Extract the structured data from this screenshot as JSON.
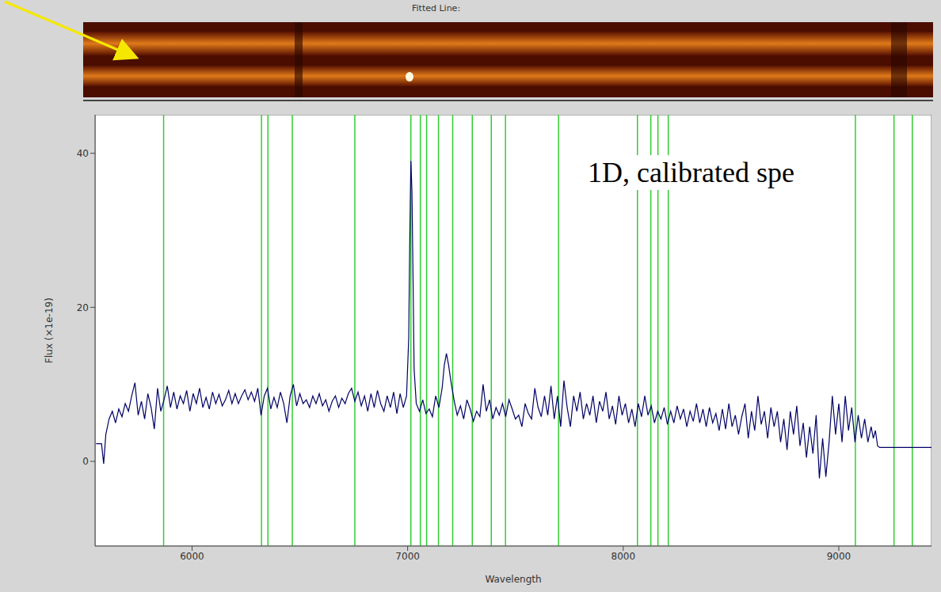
{
  "chart_data": {
    "type": "line",
    "title": "Fitted Line:",
    "annotations": [
      "1D, calibrated spe"
    ],
    "x_label": "Wavelength",
    "y_label": "Flux (×1e-19)",
    "color": "#000066",
    "xlim": [
      5550,
      9430
    ],
    "ylim": [
      -11,
      45
    ],
    "xticks": [
      6000,
      7000,
      8000,
      9000
    ],
    "yticks": [
      0,
      20,
      40
    ],
    "grid": false,
    "reference_lines": {
      "x": [
        5868,
        6322,
        6352,
        6465,
        6755,
        7015,
        7059,
        7088,
        7143,
        7209,
        7300,
        7388,
        7454,
        7700,
        8066,
        8128,
        8161,
        8209,
        9077,
        9256,
        9341
      ],
      "color": "#33cc33"
    },
    "x": [
      5555,
      5580,
      5590,
      5600,
      5615,
      5630,
      5645,
      5660,
      5675,
      5690,
      5705,
      5720,
      5735,
      5750,
      5765,
      5780,
      5795,
      5810,
      5825,
      5840,
      5855,
      5870,
      5885,
      5900,
      5915,
      5930,
      5945,
      5960,
      5975,
      5990,
      6005,
      6020,
      6035,
      6050,
      6065,
      6080,
      6095,
      6110,
      6125,
      6140,
      6155,
      6170,
      6185,
      6200,
      6215,
      6230,
      6245,
      6260,
      6275,
      6290,
      6305,
      6320,
      6335,
      6350,
      6365,
      6380,
      6395,
      6410,
      6425,
      6440,
      6455,
      6470,
      6485,
      6500,
      6515,
      6530,
      6545,
      6560,
      6575,
      6590,
      6605,
      6620,
      6635,
      6650,
      6665,
      6680,
      6695,
      6710,
      6725,
      6740,
      6755,
      6770,
      6785,
      6800,
      6815,
      6830,
      6845,
      6860,
      6875,
      6890,
      6905,
      6920,
      6935,
      6950,
      6965,
      6980,
      6995,
      7005,
      7010,
      7015,
      7020,
      7025,
      7030,
      7040,
      7055,
      7070,
      7085,
      7100,
      7115,
      7130,
      7145,
      7160,
      7170,
      7180,
      7190,
      7200,
      7215,
      7230,
      7245,
      7260,
      7275,
      7290,
      7305,
      7320,
      7335,
      7350,
      7365,
      7380,
      7395,
      7410,
      7425,
      7440,
      7455,
      7470,
      7485,
      7500,
      7515,
      7530,
      7545,
      7560,
      7575,
      7590,
      7605,
      7620,
      7635,
      7650,
      7665,
      7680,
      7695,
      7710,
      7725,
      7740,
      7755,
      7770,
      7785,
      7800,
      7815,
      7830,
      7845,
      7860,
      7875,
      7890,
      7905,
      7920,
      7935,
      7950,
      7965,
      7980,
      7995,
      8010,
      8025,
      8040,
      8055,
      8070,
      8085,
      8100,
      8115,
      8130,
      8145,
      8160,
      8175,
      8190,
      8205,
      8220,
      8235,
      8250,
      8265,
      8280,
      8295,
      8310,
      8325,
      8340,
      8355,
      8370,
      8385,
      8400,
      8415,
      8430,
      8445,
      8460,
      8475,
      8490,
      8505,
      8520,
      8535,
      8550,
      8565,
      8580,
      8595,
      8610,
      8625,
      8640,
      8655,
      8670,
      8685,
      8700,
      8715,
      8730,
      8745,
      8760,
      8775,
      8790,
      8805,
      8820,
      8835,
      8850,
      8865,
      8880,
      8895,
      8910,
      8925,
      8940,
      8955,
      8970,
      8985,
      9000,
      9015,
      9030,
      9045,
      9060,
      9075,
      9090,
      9105,
      9120,
      9135,
      9150,
      9160,
      9170,
      9180,
      9190,
      9430
    ],
    "values": [
      2.3,
      2.3,
      -0.3,
      3.5,
      5.5,
      6.5,
      5,
      6.8,
      5.8,
      7.5,
      6.5,
      8.5,
      10.2,
      6,
      7.8,
      5.5,
      8.8,
      7,
      4.2,
      9.5,
      6.5,
      8,
      9.8,
      7,
      9,
      6.8,
      8.5,
      7.5,
      9.2,
      6.5,
      8.8,
      7.5,
      9.5,
      7,
      8.3,
      6.8,
      9,
      7.5,
      8.7,
      7.2,
      8,
      9.2,
      7.5,
      8.8,
      7.5,
      8.5,
      9.3,
      8,
      9,
      7.8,
      9.5,
      6,
      8.5,
      9.5,
      6.8,
      8.3,
      7,
      9,
      7.5,
      5,
      8.5,
      10,
      7.2,
      8.8,
      7.5,
      8,
      7,
      8.5,
      7.5,
      8.8,
      7.2,
      8,
      6.5,
      7.8,
      8.5,
      7,
      8.2,
      7.5,
      8.8,
      9.5,
      7.8,
      9,
      7.2,
      8.5,
      6.5,
      8.8,
      7,
      9.2,
      7.5,
      6.5,
      8.5,
      7,
      9,
      6.2,
      8.8,
      7,
      8.5,
      16,
      29,
      39,
      35,
      24,
      12,
      7.5,
      6.5,
      8,
      6.2,
      6.8,
      5.8,
      8.5,
      7,
      9.5,
      12.5,
      14,
      12.5,
      10.5,
      8,
      6,
      7.2,
      5.5,
      8,
      6.8,
      5.2,
      6.5,
      5.8,
      10,
      6.5,
      8,
      5.5,
      7,
      6,
      7.5,
      5.8,
      8,
      6.8,
      5.5,
      6,
      4.5,
      7.5,
      6.2,
      5.5,
      9.5,
      7,
      5.8,
      8.5,
      6,
      9.8,
      5.5,
      8.5,
      4.5,
      10.5,
      7,
      4.5,
      8.5,
      6.5,
      9,
      5.5,
      7.5,
      6,
      8.5,
      5,
      7.8,
      6.5,
      9,
      5.5,
      7.2,
      4.8,
      8.5,
      6,
      7.5,
      5,
      6.8,
      4.5,
      7.5,
      5.8,
      8.5,
      6,
      7.2,
      5,
      6.5,
      5.5,
      7,
      4.8,
      6.5,
      5,
      7.2,
      5.5,
      6.8,
      4.5,
      6.5,
      5.2,
      7.5,
      5,
      6.8,
      4.5,
      7,
      5,
      6.2,
      4,
      6.8,
      4.2,
      7.5,
      4.5,
      6,
      3.5,
      5.8,
      7.5,
      3,
      6.5,
      4,
      8.5,
      4.8,
      6.5,
      3,
      7,
      4.5,
      6.5,
      2.5,
      5.5,
      1.5,
      6.5,
      3.5,
      7.2,
      2,
      5,
      0.5,
      4.5,
      1,
      6,
      -2.2,
      3,
      -2,
      2.5,
      8.5,
      3.5,
      7.5,
      2.5,
      8.5,
      4,
      7,
      2.5,
      6,
      3,
      5.5,
      2.5,
      4.5,
      3,
      4,
      2,
      1.8,
      1.8
    ]
  }
}
